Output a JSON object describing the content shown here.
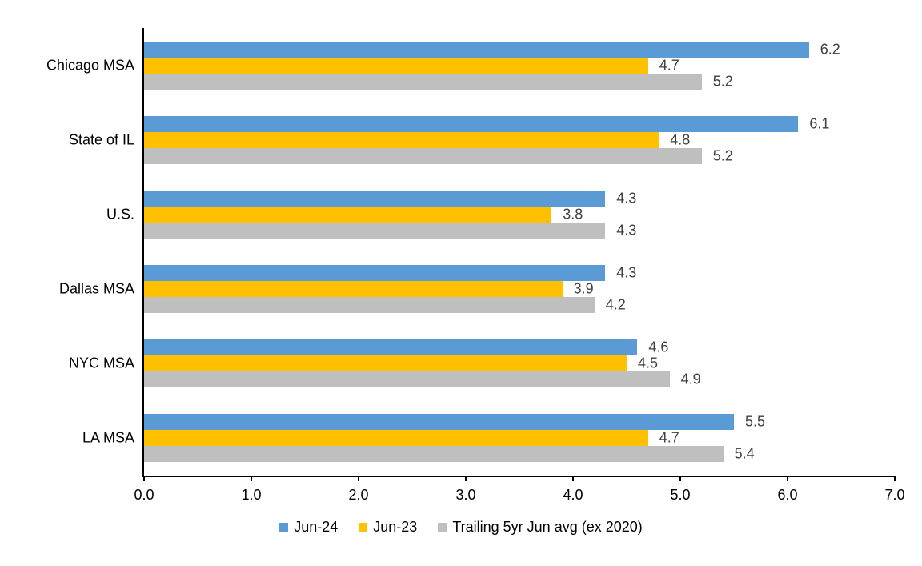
{
  "chart_data": {
    "type": "bar",
    "orientation": "horizontal",
    "title": "",
    "xlabel": "",
    "ylabel": "",
    "categories": [
      "Chicago MSA",
      "State of IL",
      "U.S.",
      "Dallas MSA",
      "NYC MSA",
      "LA MSA"
    ],
    "series": [
      {
        "name": "Jun-24",
        "color": "#5B9BD5",
        "values": [
          6.2,
          6.1,
          4.3,
          4.3,
          4.6,
          5.5
        ]
      },
      {
        "name": "Jun-23",
        "color": "#FFC000",
        "values": [
          4.7,
          4.8,
          3.8,
          3.9,
          4.5,
          4.7
        ]
      },
      {
        "name": "Trailing 5yr Jun avg (ex 2020)",
        "color": "#BFBFBF",
        "values": [
          5.2,
          5.2,
          4.3,
          4.2,
          4.9,
          5.4
        ]
      }
    ],
    "xlim": [
      0,
      7
    ],
    "xtick_labels": [
      "0.0",
      "1.0",
      "2.0",
      "3.0",
      "4.0",
      "5.0",
      "6.0",
      "7.0"
    ],
    "value_label_decimals": 1,
    "grid": false,
    "legend_position": "bottom",
    "colors": {
      "axis": "#000000",
      "value_label": "#404040",
      "category_label": "#000000",
      "tick_label": "#000000",
      "background": "#ffffff"
    }
  }
}
